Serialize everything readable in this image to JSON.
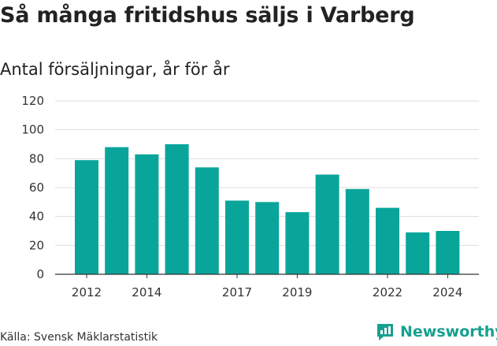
{
  "title": "Så många fritidshus säljs i Varberg",
  "subtitle": "Antal försäljningar, år för år",
  "source": "Källa: Svensk Mäklarstatistik",
  "brand": "Newsworthy",
  "colors": {
    "bar": "#0aa59a",
    "grid": "#dddddd",
    "brand": "#18a08f"
  },
  "chart_data": {
    "type": "bar",
    "title": "Så många fritidshus säljs i Varberg",
    "subtitle": "Antal försäljningar, år för år",
    "categories": [
      "2012",
      "2013",
      "2014",
      "2015",
      "2016",
      "2017",
      "2018",
      "2019",
      "2020",
      "2021",
      "2022",
      "2023",
      "2024"
    ],
    "values": [
      79,
      88,
      83,
      90,
      74,
      51,
      50,
      43,
      69,
      59,
      46,
      29,
      30
    ],
    "x_tick_labels": [
      "2012",
      "2014",
      "2017",
      "2019",
      "2022",
      "2024"
    ],
    "y_ticks": [
      0,
      20,
      40,
      60,
      80,
      100,
      120
    ],
    "ylim": [
      0,
      120
    ],
    "grid": true,
    "legend": "none"
  }
}
